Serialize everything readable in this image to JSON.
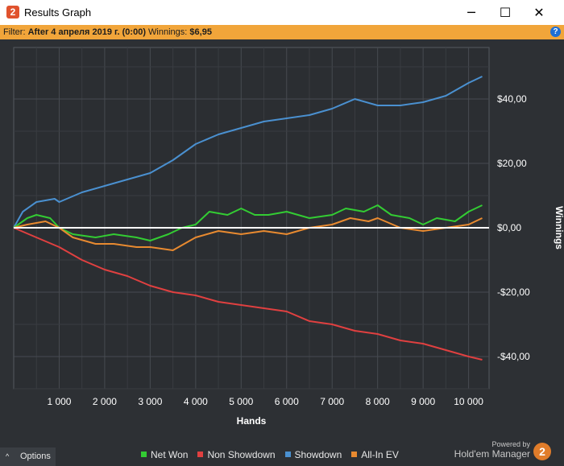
{
  "window": {
    "title": "Results Graph",
    "minimize_icon": "─",
    "maximize_icon": "☐",
    "close_icon": "✕",
    "app_icon_text": "2"
  },
  "filter": {
    "label": "Filter:",
    "value": "After 4 апреля 2019 г. (0:00)",
    "winnings_label": "Winnings:",
    "winnings_value": "$6,95",
    "help_icon": "?"
  },
  "chart_data": {
    "type": "line",
    "xlabel": "Hands",
    "ylabel": "Winnings",
    "xlim": [
      0,
      10450
    ],
    "ylim": [
      -50,
      56
    ],
    "x_ticks": [
      1000,
      2000,
      3000,
      4000,
      5000,
      6000,
      7000,
      8000,
      9000,
      10000
    ],
    "x_tick_labels": [
      "1 000",
      "2 000",
      "3 000",
      "4 000",
      "5 000",
      "6 000",
      "7 000",
      "8 000",
      "9 000",
      "10 000"
    ],
    "y_ticks": [
      40,
      20,
      0,
      -20,
      -40
    ],
    "y_tick_labels": [
      "$40,00",
      "$20,00",
      "$0,00",
      "-$20,00",
      "-$40,00"
    ],
    "grid": true,
    "series": [
      {
        "name": "Showdown",
        "color": "#4a90d0",
        "x": [
          0,
          200,
          500,
          900,
          1000,
          1500,
          2000,
          2500,
          3000,
          3500,
          4000,
          4500,
          5000,
          5500,
          6000,
          6500,
          7000,
          7500,
          8000,
          8500,
          9000,
          9500,
          10000,
          10300
        ],
        "y": [
          0,
          5,
          8,
          9,
          8,
          11,
          13,
          15,
          17,
          21,
          26,
          29,
          31,
          33,
          34,
          35,
          37,
          40,
          38,
          38,
          39,
          41,
          45,
          47
        ]
      },
      {
        "name": "Net Won",
        "color": "#33cc33",
        "x": [
          0,
          300,
          500,
          800,
          1000,
          1300,
          1800,
          2200,
          2700,
          3000,
          3400,
          3700,
          4000,
          4300,
          4700,
          5000,
          5300,
          5600,
          6000,
          6500,
          7000,
          7300,
          7700,
          8000,
          8300,
          8700,
          9000,
          9300,
          9700,
          10000,
          10300
        ],
        "y": [
          0,
          3,
          4,
          3,
          0,
          -2,
          -3,
          -2,
          -3,
          -4,
          -2,
          0,
          1,
          5,
          4,
          6,
          4,
          4,
          5,
          3,
          4,
          6,
          5,
          7,
          4,
          3,
          1,
          3,
          2,
          5,
          7
        ]
      },
      {
        "name": "Non Showdown",
        "color": "#e04040",
        "x": [
          0,
          500,
          1000,
          1500,
          2000,
          2500,
          3000,
          3500,
          4000,
          4500,
          5000,
          5500,
          6000,
          6500,
          7000,
          7500,
          8000,
          8500,
          9000,
          9500,
          10000,
          10300
        ],
        "y": [
          0,
          -3,
          -6,
          -10,
          -13,
          -15,
          -18,
          -20,
          -21,
          -23,
          -24,
          -25,
          -26,
          -29,
          -30,
          -32,
          -33,
          -35,
          -36,
          -38,
          -40,
          -41
        ]
      },
      {
        "name": "All-In EV",
        "color": "#e88a30",
        "x": [
          0,
          300,
          700,
          1000,
          1300,
          1800,
          2200,
          2700,
          3000,
          3500,
          4000,
          4500,
          5000,
          5500,
          6000,
          6500,
          7000,
          7400,
          7800,
          8000,
          8500,
          9000,
          9500,
          10000,
          10300
        ],
        "y": [
          0,
          1,
          2,
          0,
          -3,
          -5,
          -5,
          -6,
          -6,
          -7,
          -3,
          -1,
          -2,
          -1,
          -2,
          0,
          1,
          3,
          2,
          3,
          0,
          -1,
          0,
          1,
          3
        ]
      }
    ],
    "zero_line_color": "#ffffff"
  },
  "footer": {
    "options_label": "Options",
    "options_chevron": "^",
    "powered_by": "Powered by",
    "brand": "Hold'em Manager",
    "brand_logo_text": "2"
  },
  "legend": [
    {
      "label": "Net Won",
      "color": "#33cc33"
    },
    {
      "label": "Non Showdown",
      "color": "#e04040"
    },
    {
      "label": "Showdown",
      "color": "#4a90d0"
    },
    {
      "label": "All-In EV",
      "color": "#e88a30"
    }
  ]
}
